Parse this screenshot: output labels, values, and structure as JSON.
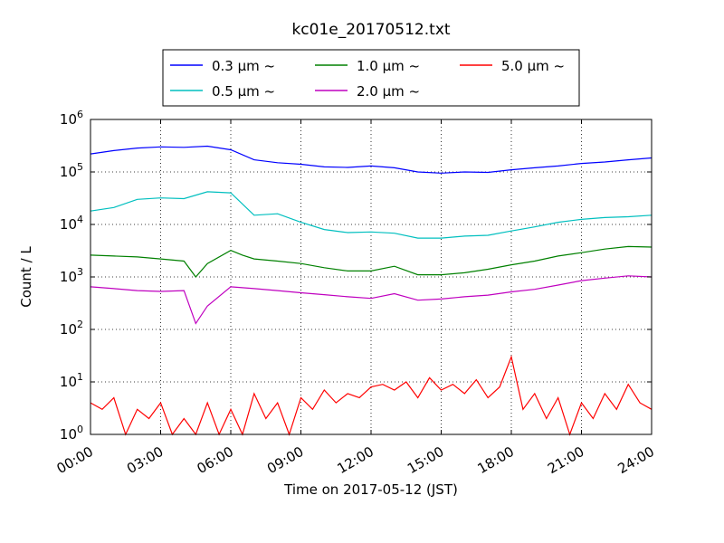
{
  "chart_data": {
    "type": "line",
    "title": "kc01e_20170512.txt",
    "xlabel": "Time on 2017-05-12 (JST)",
    "ylabel": "Count / L",
    "yscale": "log",
    "ylim": [
      1,
      1000000
    ],
    "xlim": [
      "00:00",
      "24:00"
    ],
    "xticks": [
      "00:00",
      "03:00",
      "06:00",
      "09:00",
      "12:00",
      "15:00",
      "18:00",
      "21:00",
      "24:00"
    ],
    "yticks": [
      {
        "base": "10",
        "exp": "0"
      },
      {
        "base": "10",
        "exp": "1"
      },
      {
        "base": "10",
        "exp": "2"
      },
      {
        "base": "10",
        "exp": "3"
      },
      {
        "base": "10",
        "exp": "4"
      },
      {
        "base": "10",
        "exp": "5"
      },
      {
        "base": "10",
        "exp": "6"
      }
    ],
    "grid": true,
    "legend_position": "top-center",
    "series": [
      {
        "name": "0.3 μm ~",
        "color": "#0000ff",
        "x": [
          "00:00",
          "01:00",
          "02:00",
          "03:00",
          "04:00",
          "05:00",
          "06:00",
          "07:00",
          "08:00",
          "09:00",
          "10:00",
          "11:00",
          "12:00",
          "13:00",
          "14:00",
          "15:00",
          "16:00",
          "17:00",
          "18:00",
          "19:00",
          "20:00",
          "21:00",
          "22:00",
          "23:00",
          "24:00"
        ],
        "values": [
          220000,
          255000,
          285000,
          300000,
          295000,
          310000,
          265000,
          170000,
          150000,
          140000,
          125000,
          122000,
          130000,
          120000,
          100000,
          95000,
          100000,
          98000,
          110000,
          120000,
          130000,
          145000,
          155000,
          170000,
          185000
        ]
      },
      {
        "name": "0.5 μm ~",
        "color": "#00bfbf",
        "x": [
          "00:00",
          "01:00",
          "02:00",
          "03:00",
          "04:00",
          "05:00",
          "06:00",
          "07:00",
          "08:00",
          "09:00",
          "10:00",
          "11:00",
          "12:00",
          "13:00",
          "14:00",
          "15:00",
          "16:00",
          "17:00",
          "18:00",
          "19:00",
          "20:00",
          "21:00",
          "22:00",
          "23:00",
          "24:00"
        ],
        "values": [
          18000,
          21000,
          30000,
          32000,
          31000,
          42000,
          40000,
          15000,
          16000,
          11000,
          8000,
          7000,
          7200,
          6800,
          5500,
          5500,
          6000,
          6200,
          7500,
          9000,
          11000,
          12500,
          13500,
          14000,
          15000
        ]
      },
      {
        "name": "1.0 μm ~",
        "color": "#008000",
        "x": [
          "00:00",
          "01:00",
          "02:00",
          "03:00",
          "04:00",
          "04:30",
          "05:00",
          "06:00",
          "06:30",
          "07:00",
          "08:00",
          "09:00",
          "10:00",
          "11:00",
          "12:00",
          "13:00",
          "14:00",
          "15:00",
          "16:00",
          "17:00",
          "18:00",
          "19:00",
          "20:00",
          "21:00",
          "22:00",
          "23:00",
          "24:00"
        ],
        "values": [
          2600,
          2500,
          2400,
          2200,
          2000,
          1000,
          1800,
          3200,
          2600,
          2200,
          2000,
          1800,
          1500,
          1300,
          1300,
          1600,
          1100,
          1100,
          1200,
          1400,
          1700,
          2000,
          2500,
          2900,
          3400,
          3800,
          3700
        ]
      },
      {
        "name": "2.0 μm ~",
        "color": "#bf00bf",
        "x": [
          "00:00",
          "01:00",
          "02:00",
          "03:00",
          "04:00",
          "04:30",
          "05:00",
          "06:00",
          "07:00",
          "08:00",
          "09:00",
          "10:00",
          "11:00",
          "12:00",
          "13:00",
          "14:00",
          "15:00",
          "16:00",
          "17:00",
          "18:00",
          "19:00",
          "20:00",
          "21:00",
          "22:00",
          "23:00",
          "24:00"
        ],
        "values": [
          650,
          600,
          550,
          530,
          550,
          130,
          280,
          650,
          600,
          550,
          500,
          460,
          420,
          390,
          480,
          360,
          380,
          420,
          450,
          520,
          580,
          700,
          850,
          950,
          1050,
          1000
        ]
      },
      {
        "name": "5.0 μm ~",
        "color": "#ff0000",
        "x": [
          "00:00",
          "00:30",
          "01:00",
          "01:30",
          "02:00",
          "02:30",
          "03:00",
          "03:30",
          "04:00",
          "04:30",
          "05:00",
          "05:30",
          "06:00",
          "06:30",
          "07:00",
          "07:30",
          "08:00",
          "08:30",
          "09:00",
          "09:30",
          "10:00",
          "10:30",
          "11:00",
          "11:30",
          "12:00",
          "12:30",
          "13:00",
          "13:30",
          "14:00",
          "14:30",
          "15:00",
          "15:30",
          "16:00",
          "16:30",
          "17:00",
          "17:30",
          "18:00",
          "18:30",
          "19:00",
          "19:30",
          "20:00",
          "20:30",
          "21:00",
          "21:30",
          "22:00",
          "22:30",
          "23:00",
          "23:30",
          "24:00"
        ],
        "values": [
          4,
          3,
          5,
          1,
          3,
          2,
          4,
          1,
          2,
          1,
          4,
          1,
          3,
          1,
          6,
          2,
          4,
          1,
          5,
          3,
          7,
          4,
          6,
          5,
          8,
          9,
          7,
          10,
          5,
          12,
          7,
          9,
          6,
          11,
          5,
          8,
          30,
          3,
          6,
          2,
          5,
          1,
          4,
          2,
          6,
          3,
          9,
          4,
          3
        ]
      }
    ]
  }
}
